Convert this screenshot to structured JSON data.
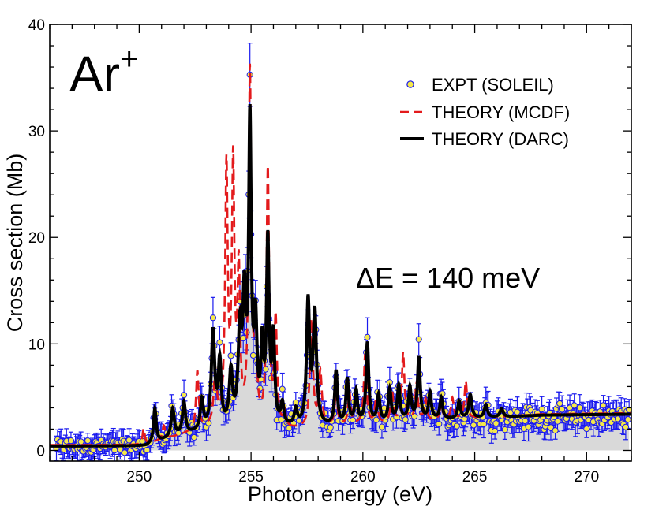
{
  "chart_data": {
    "type": "line",
    "title": "",
    "ion_label": "Ar",
    "ion_charge": "+",
    "annotation": "ΔE = 140 meV",
    "xlabel": "Photon energy (eV)",
    "ylabel": "Cross section (Mb)",
    "xlim": [
      246,
      272
    ],
    "ylim": [
      -1,
      40
    ],
    "xticks": [
      250,
      255,
      260,
      265,
      270
    ],
    "yticks": [
      0,
      10,
      20,
      30,
      40
    ],
    "xtick_labels": [
      "250",
      "255",
      "260",
      "265",
      "270"
    ],
    "ytick_labels": [
      "0",
      "10",
      "20",
      "30",
      "40"
    ],
    "legend_position": "top-right",
    "legend": [
      {
        "label": "EXPT (SOLEIL)",
        "style": "circle",
        "color": "#f5e94a",
        "edge": "#1a1aee"
      },
      {
        "label": "THEORY (MCDF)",
        "style": "dashed",
        "color": "#e31a1c"
      },
      {
        "label": "THEORY (DARC)",
        "style": "solid",
        "color": "#000000"
      }
    ],
    "series": [
      {
        "name": "THEORY (DARC)",
        "baseline": [
          [
            246,
            0.4
          ],
          [
            250.3,
            0.4
          ],
          [
            251.5,
            1.2
          ],
          [
            253,
            1.8
          ],
          [
            256.5,
            2.0
          ],
          [
            258.5,
            2.2
          ],
          [
            262,
            2.8
          ],
          [
            265,
            3.0
          ],
          [
            268,
            3.3
          ],
          [
            272,
            3.4
          ]
        ],
        "peaks": [
          [
            250.7,
            3.2,
            0.07
          ],
          [
            251.5,
            2.6,
            0.08
          ],
          [
            252.0,
            3.0,
            0.08
          ],
          [
            252.8,
            2.8,
            0.08
          ],
          [
            253.3,
            9.0,
            0.09
          ],
          [
            253.6,
            6.0,
            0.08
          ],
          [
            254.1,
            5.0,
            0.09
          ],
          [
            254.5,
            8.5,
            0.09
          ],
          [
            254.7,
            11.0,
            0.08
          ],
          [
            254.95,
            28.0,
            0.07
          ],
          [
            255.2,
            9.0,
            0.08
          ],
          [
            255.5,
            7.0,
            0.07
          ],
          [
            255.75,
            17.0,
            0.07
          ],
          [
            256.0,
            8.0,
            0.07
          ],
          [
            256.4,
            2.0,
            0.08
          ],
          [
            257.0,
            1.5,
            0.08
          ],
          [
            257.55,
            11.5,
            0.08
          ],
          [
            257.85,
            10.5,
            0.09
          ],
          [
            258.8,
            5.0,
            0.07
          ],
          [
            259.3,
            4.2,
            0.07
          ],
          [
            259.7,
            3.0,
            0.07
          ],
          [
            260.2,
            7.5,
            0.07
          ],
          [
            260.7,
            2.5,
            0.07
          ],
          [
            261.2,
            3.0,
            0.07
          ],
          [
            261.6,
            3.2,
            0.07
          ],
          [
            262.1,
            3.0,
            0.07
          ],
          [
            262.5,
            5.8,
            0.07
          ],
          [
            263.0,
            2.5,
            0.07
          ],
          [
            263.5,
            2.0,
            0.07
          ],
          [
            264.3,
            1.6,
            0.07
          ],
          [
            264.8,
            2.2,
            0.08
          ],
          [
            265.5,
            1.2,
            0.08
          ],
          [
            266.2,
            0.8,
            0.08
          ]
        ]
      },
      {
        "name": "THEORY (MCDF)",
        "baseline": [
          [
            246,
            0.5
          ],
          [
            250.2,
            0.5
          ],
          [
            251.5,
            1.2
          ],
          [
            253,
            2.0
          ],
          [
            256.5,
            1.8
          ],
          [
            258.5,
            2.2
          ],
          [
            262,
            2.6
          ],
          [
            265,
            3.0
          ],
          [
            268,
            3.4
          ],
          [
            272,
            3.5
          ]
        ],
        "peaks": [
          [
            250.2,
            1.5,
            0.06
          ],
          [
            251.1,
            1.3,
            0.07
          ],
          [
            252.6,
            5.5,
            0.07
          ],
          [
            253.4,
            5.0,
            0.08
          ],
          [
            253.9,
            24.0,
            0.07
          ],
          [
            254.2,
            24.0,
            0.07
          ],
          [
            254.45,
            14.0,
            0.07
          ],
          [
            254.95,
            33.0,
            0.07
          ],
          [
            255.2,
            8.0,
            0.07
          ],
          [
            255.75,
            24.0,
            0.07
          ],
          [
            256.1,
            10.0,
            0.07
          ],
          [
            256.5,
            1.5,
            0.07
          ],
          [
            257.7,
            10.0,
            0.08
          ],
          [
            258.1,
            5.0,
            0.08
          ],
          [
            258.8,
            3.0,
            0.07
          ],
          [
            259.4,
            3.0,
            0.07
          ],
          [
            260.1,
            6.5,
            0.07
          ],
          [
            260.6,
            2.5,
            0.07
          ],
          [
            261.3,
            3.0,
            0.07
          ],
          [
            261.8,
            6.5,
            0.07
          ],
          [
            262.4,
            3.5,
            0.07
          ],
          [
            262.8,
            2.0,
            0.07
          ],
          [
            263.5,
            1.5,
            0.07
          ],
          [
            264.0,
            2.0,
            0.07
          ],
          [
            264.6,
            3.5,
            0.07
          ],
          [
            265.5,
            1.0,
            0.08
          ]
        ]
      },
      {
        "name": "EXPT (SOLEIL)",
        "source": "measured points at ~0.05 eV spacing following the DARC profile with scatter",
        "x_range": [
          246.3,
          271.9
        ],
        "step": 0.05,
        "error_bar_typical": 1.0
      }
    ]
  }
}
